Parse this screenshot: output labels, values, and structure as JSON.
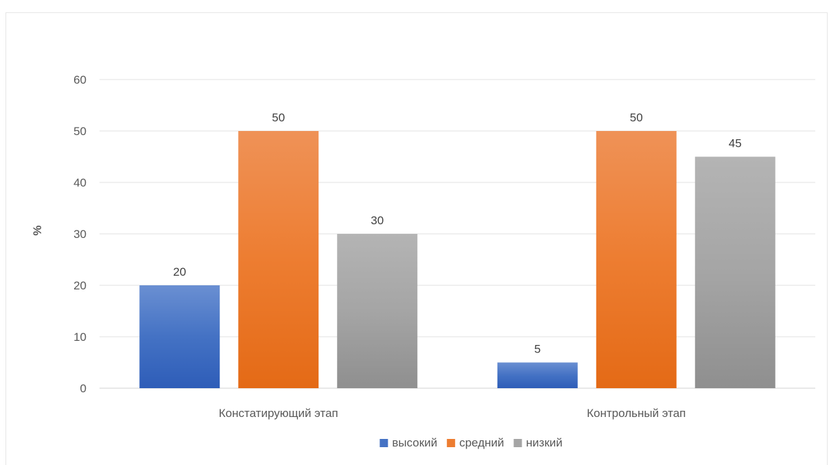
{
  "chart_data": {
    "type": "bar",
    "title": "",
    "xlabel": "",
    "ylabel": "%",
    "ylim": [
      0,
      60
    ],
    "yticks": [
      0,
      10,
      20,
      30,
      40,
      50,
      60
    ],
    "grid": true,
    "legend_position": "bottom",
    "categories": [
      "Констатирующий этап",
      "Контрольный этап"
    ],
    "series": [
      {
        "name": "высокий",
        "values": [
          20,
          5
        ],
        "color": "#4472C4",
        "color_top": "#6A8FD2",
        "color_bottom": "#2E5DB8"
      },
      {
        "name": "средний",
        "values": [
          50,
          50
        ],
        "color": "#ED7D31",
        "color_top": "#EF9257",
        "color_bottom": "#E46A16"
      },
      {
        "name": "низкий",
        "values": [
          30,
          45
        ],
        "color": "#A5A5A5",
        "color_top": "#B4B4B4",
        "color_bottom": "#8F8F8F"
      }
    ]
  }
}
